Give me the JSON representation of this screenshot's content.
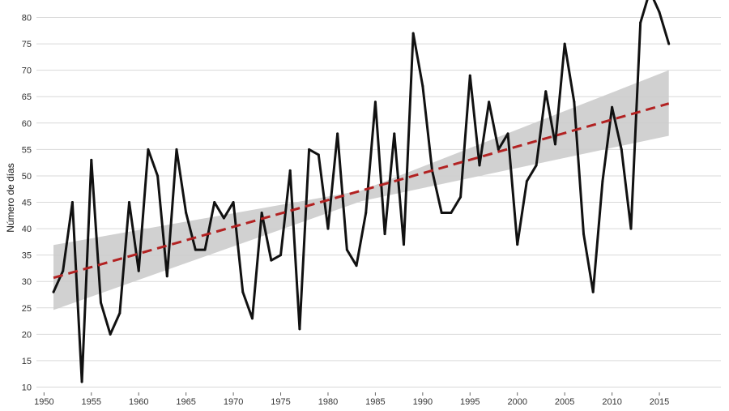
{
  "chart_data": {
    "type": "line",
    "ylabel": "Número de días",
    "xlim": [
      1949.2,
      2021.5
    ],
    "ylim": [
      9,
      83
    ],
    "x_ticks": [
      1950,
      1955,
      1960,
      1965,
      1970,
      1975,
      1980,
      1985,
      1990,
      1995,
      2000,
      2005,
      2010,
      2015
    ],
    "y_ticks": [
      10,
      15,
      20,
      25,
      30,
      35,
      40,
      45,
      50,
      55,
      60,
      65,
      70,
      75,
      80
    ],
    "grid": true,
    "series": [
      {
        "type": "line",
        "color": "#111111",
        "x": [
          1951,
          1952,
          1953,
          1954,
          1955,
          1956,
          1957,
          1958,
          1959,
          1960,
          1961,
          1962,
          1963,
          1964,
          1965,
          1966,
          1967,
          1968,
          1969,
          1970,
          1971,
          1972,
          1973,
          1974,
          1975,
          1976,
          1977,
          1978,
          1979,
          1980,
          1981,
          1982,
          1983,
          1984,
          1985,
          1986,
          1987,
          1988,
          1989,
          1990,
          1991,
          1992,
          1993,
          1994,
          1995,
          1996,
          1997,
          1998,
          1999,
          2000,
          2001,
          2002,
          2003,
          2004,
          2005,
          2006,
          2007,
          2008,
          2009,
          2010,
          2011,
          2012,
          2013,
          2014,
          2015,
          2016
        ],
        "y": [
          28,
          32,
          45,
          11,
          53,
          26,
          20,
          24,
          45,
          32,
          55,
          50,
          31,
          55,
          43,
          36,
          36,
          45,
          42,
          45,
          28,
          23,
          43,
          34,
          35,
          51,
          21,
          55,
          54,
          40,
          58,
          36,
          33,
          43,
          64,
          39,
          58,
          37,
          77,
          67,
          51,
          43,
          43,
          46,
          69,
          52,
          64,
          55,
          58,
          37,
          49,
          52,
          66,
          56,
          75,
          64,
          39,
          28,
          49,
          63,
          55,
          40,
          79,
          85,
          81,
          75
        ]
      },
      {
        "type": "trend",
        "style": "dashed",
        "color": "#b22222",
        "x": [
          1951,
          2016
        ],
        "y": [
          30.7,
          63.7
        ]
      },
      {
        "type": "confidence-band",
        "color": "#cccccc",
        "x": [
          1951,
          1983.5,
          2016
        ],
        "lower": [
          24.6,
          45.2,
          57.6
        ],
        "upper": [
          36.9,
          47.2,
          70
        ]
      }
    ]
  }
}
